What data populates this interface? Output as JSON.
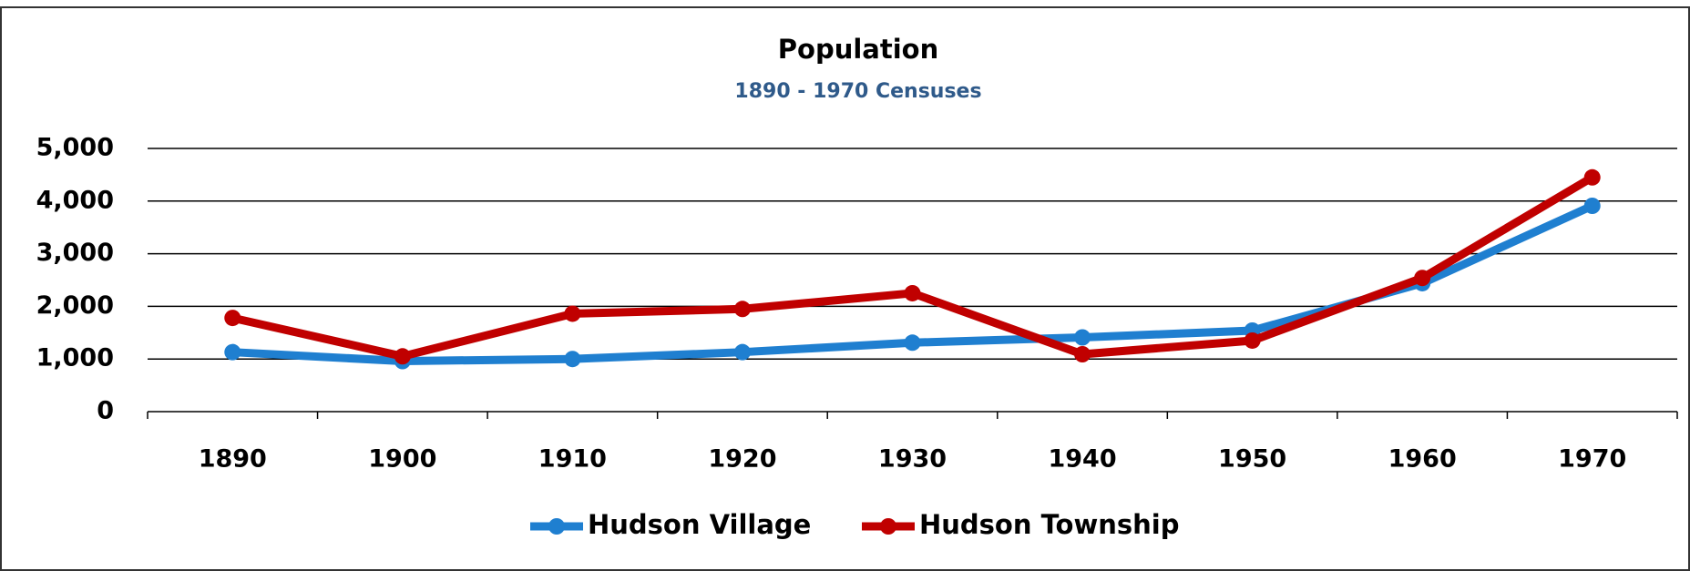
{
  "chart_data": {
    "type": "line",
    "title": "Population",
    "subtitle": "1890 - 1970 Censuses",
    "categories": [
      "1890",
      "1900",
      "1910",
      "1920",
      "1930",
      "1940",
      "1950",
      "1960",
      "1970"
    ],
    "series": [
      {
        "name": "Hudson Village",
        "color": "#1f7fd0",
        "values": [
          1130,
          960,
          1000,
          1130,
          1310,
          1410,
          1540,
          2440,
          3910
        ]
      },
      {
        "name": "Hudson Township",
        "color": "#c00000",
        "values": [
          1780,
          1050,
          1860,
          1950,
          2250,
          1090,
          1350,
          2540,
          4450
        ]
      }
    ],
    "ylim": [
      0,
      5000
    ],
    "yticks": [
      0,
      {
        "value": 1000,
        "label": "1,000"
      },
      {
        "value": 2000,
        "label": "2,000"
      },
      {
        "value": 3000,
        "label": "3,000"
      },
      {
        "value": 4000,
        "label": "4,000"
      },
      {
        "value": 5000,
        "label": "5,000"
      }
    ],
    "grid": true,
    "legend": "bottom"
  }
}
